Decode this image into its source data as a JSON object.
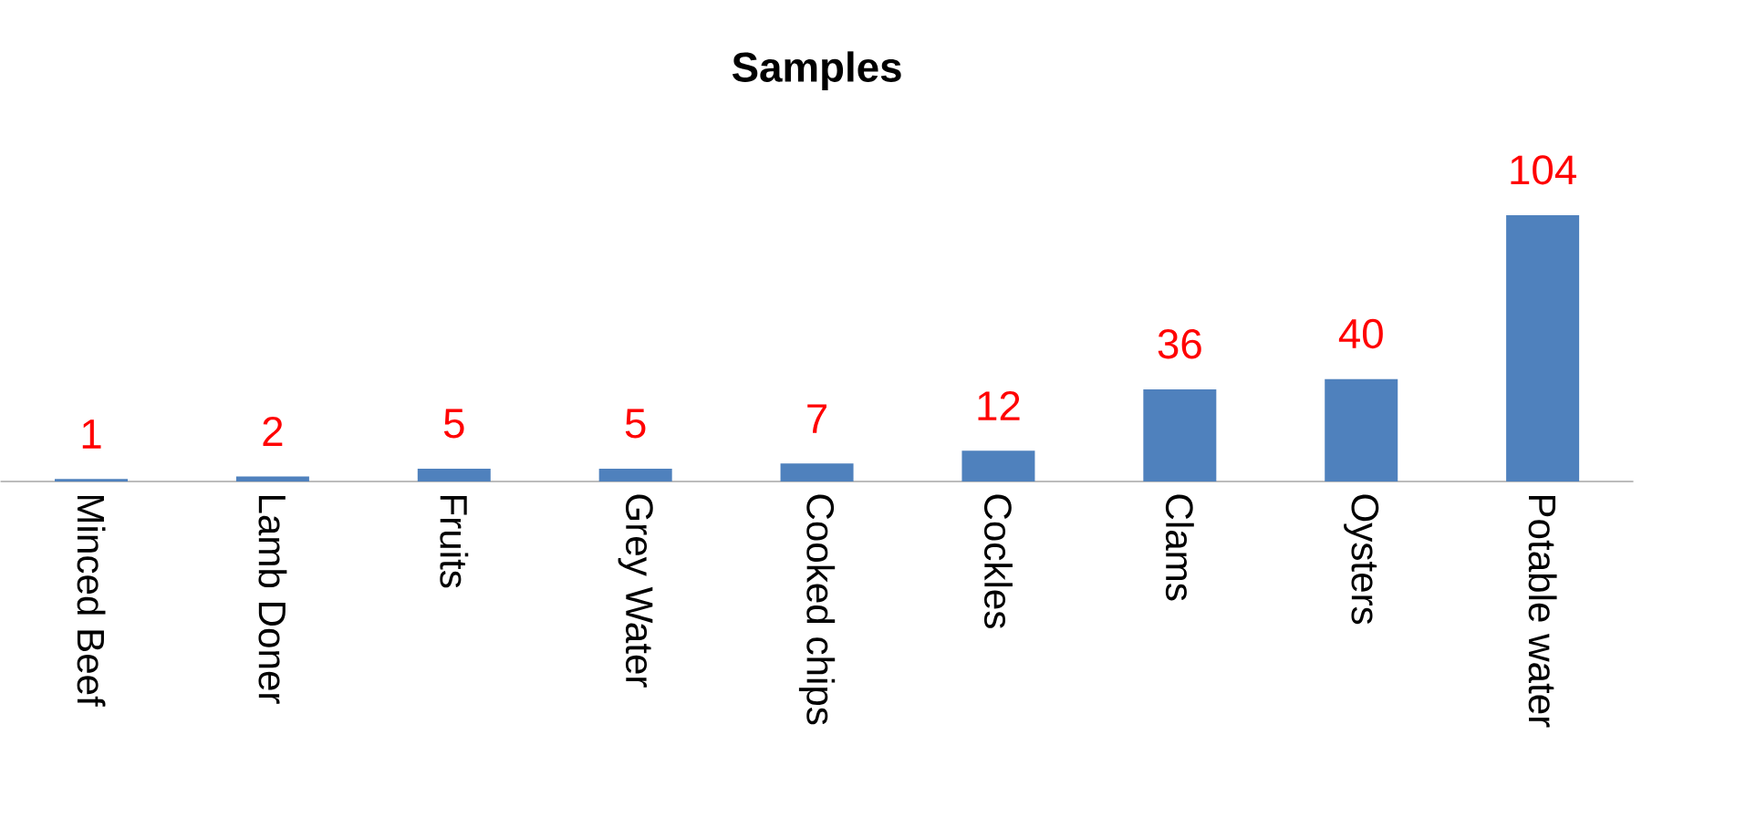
{
  "chart_data": {
    "type": "bar",
    "title": "Samples",
    "categories": [
      "Minced Beef",
      "Lamb Doner",
      "Fruits",
      "Grey Water",
      "Cooked chips",
      "Cockles",
      "Clams",
      "Oysters",
      "Potable water"
    ],
    "values": [
      1,
      2,
      5,
      5,
      7,
      12,
      36,
      40,
      104
    ],
    "color": "#4f81bd",
    "data_labels": true
  }
}
